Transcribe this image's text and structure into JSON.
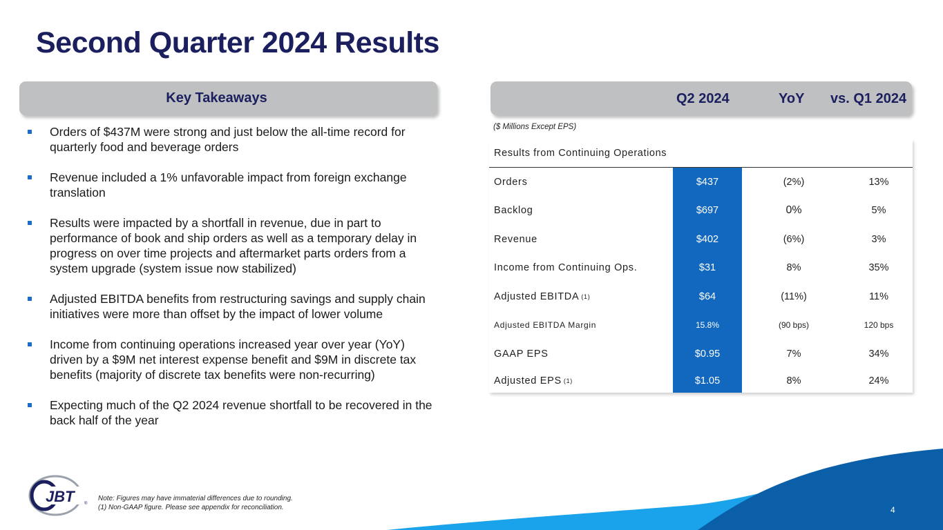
{
  "title": "Second Quarter 2024 Results",
  "takeaways": {
    "label": "Key Takeaways",
    "bullets": [
      "Orders of $437M were strong and just below the all-time record for quarterly food and beverage orders",
      "Revenue included a 1% unfavorable impact from foreign exchange translation",
      "Results were impacted by a shortfall in revenue, due in part to performance of book and ship orders as well as a temporary delay in progress on over time projects and aftermarket parts orders from a system upgrade (system issue now stabilized)",
      "Adjusted EBITDA benefits from restructuring savings and supply chain initiatives were more than offset by the impact of lower volume",
      "Income from continuing operations increased year over year (YoY) driven by a $9M net interest expense benefit and $9M in discrete tax benefits (majority of discrete tax benefits were non-recurring)",
      "Expecting much of the Q2 2024 revenue shortfall to be recovered in the back half of the year"
    ]
  },
  "results": {
    "columns": [
      "Q2 2024",
      "YoY",
      "vs. Q1 2024"
    ],
    "units_note": "($ Millions Except EPS)",
    "section_title": "Results from Continuing Operations",
    "rows": [
      {
        "label": "Orders",
        "sup": "",
        "q2": "$437",
        "yoy": "(2%)",
        "q1": "13%"
      },
      {
        "label": "Backlog",
        "sup": "",
        "q2": "$697",
        "yoy": "0%",
        "q1": "5%"
      },
      {
        "label": "Revenue",
        "sup": "",
        "q2": "$402",
        "yoy": "(6%)",
        "q1": "3%"
      },
      {
        "label": "Income from Continuing Ops.",
        "sup": "",
        "q2": "$31",
        "yoy": "8%",
        "q1": "35%"
      },
      {
        "label": "Adjusted EBITDA",
        "sup": "(1)",
        "q2": "$64",
        "yoy": "(11%)",
        "q1": "11%"
      },
      {
        "label": "Adjusted EBITDA Margin",
        "sup": "",
        "q2": "15.8%",
        "yoy": "(90 bps)",
        "q1": "120 bps"
      },
      {
        "label": "GAAP EPS",
        "sup": "",
        "q2": "$0.95",
        "yoy": "7%",
        "q1": "34%"
      },
      {
        "label": "Adjusted EPS",
        "sup": "(1)",
        "q2": "$1.05",
        "yoy": "8%",
        "q1": "24%"
      }
    ]
  },
  "footer": {
    "note_line1": "Note: Figures may have immaterial differences due to rounding.",
    "note_line2": "(1) Non-GAAP figure. Please see appendix for reconciliation.",
    "page_number": "4",
    "logo_text": "JBT"
  },
  "colors": {
    "navy": "#1b1f5e",
    "accent_blue": "#1268bf",
    "wave_dark": "#0b5fa8",
    "wave_light": "#1aa3ea",
    "pill_gray": "#bfc0c2"
  }
}
